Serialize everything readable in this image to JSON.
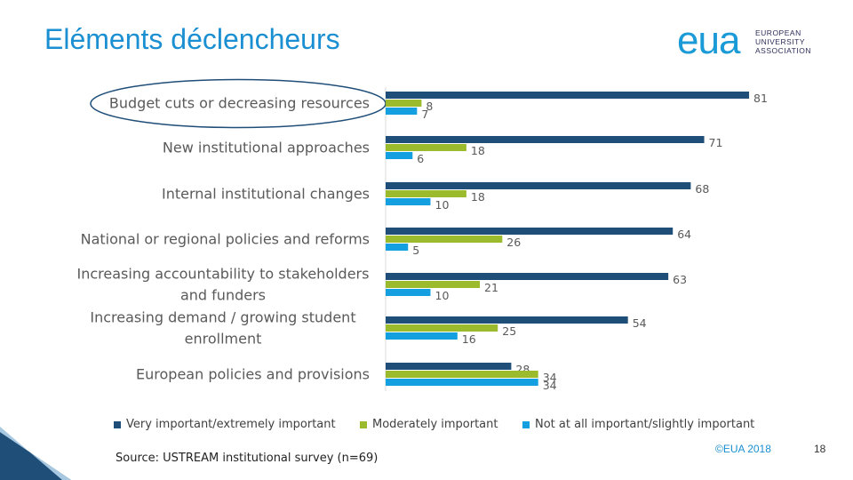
{
  "page": {
    "title": "Eléments déclencheurs",
    "source": "Source: USTREAM institutional survey (n=69)",
    "copyright": "©EUA 2018",
    "page_number": "18"
  },
  "logo": {
    "word": "eua",
    "subtitle": "EUROPEAN\nUNIVERSITY\nASSOCIATION"
  },
  "colors": {
    "dark_blue": "#1f4e79",
    "green": "#9bbb2d",
    "light_blue": "#14a0e0",
    "title": "#1a8fd1"
  },
  "chart_data": {
    "type": "bar",
    "orientation": "horizontal",
    "title": "Eléments déclencheurs",
    "categories": [
      [
        "Budget cuts or decreasing resources"
      ],
      [
        "New institutional approaches"
      ],
      [
        "Internal institutional changes"
      ],
      [
        "National or regional policies and reforms"
      ],
      [
        "Increasing accountability to stakeholders",
        "and funders"
      ],
      [
        "Increasing demand / growing student",
        "enrollment"
      ],
      [
        "European policies and provisions"
      ]
    ],
    "highlighted_category": 0,
    "series": [
      {
        "name": "Very important/extremely important",
        "values": [
          81,
          71,
          68,
          64,
          63,
          54,
          28
        ]
      },
      {
        "name": "Moderately important",
        "values": [
          8,
          18,
          18,
          26,
          21,
          25,
          34
        ]
      },
      {
        "name": "Not at all important/slightly important",
        "values": [
          7,
          6,
          10,
          5,
          10,
          16,
          34
        ]
      }
    ],
    "xlim": [
      0,
      85
    ],
    "legend_position": "bottom"
  }
}
